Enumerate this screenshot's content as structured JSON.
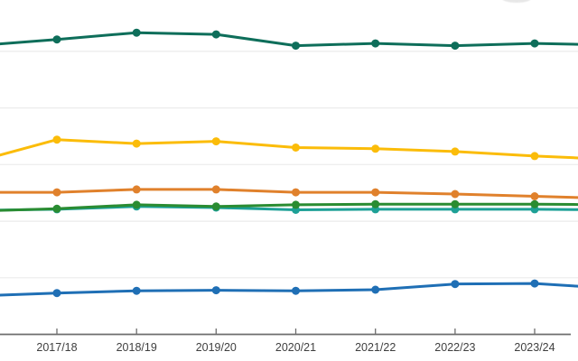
{
  "page": {
    "background_color": "#ffffff",
    "top_edge_remnant": "faint light-gray partial ellipse of a cropped element at top edge"
  },
  "chart_data": {
    "type": "line",
    "title": "",
    "legend": "none visible (cropped out)",
    "categories": [
      "2017/18",
      "2018/19",
      "2019/20",
      "2020/21",
      "2021/22",
      "2022/23",
      "2023/24"
    ],
    "x_axis": {
      "axis_color": "#6e6e6e",
      "label_color": "#3f3f3f",
      "tick_style": "short tick above axis line at each category"
    },
    "y_axis": {
      "labels_visible": false,
      "gridline_values": [
        10,
        20,
        30,
        40,
        50
      ],
      "ylim": [
        0,
        59
      ],
      "grid_color": "#ebebeb",
      "note": "No y-axis labels are visible in the crop; values estimated assuming one gridline interval = 10 units (axis baseline = 0)."
    },
    "values_note": "Each series has 9 values: first and last are off-canvas continuation points (chart cropped left/right); middle 7 align with categories and have visible round markers.",
    "series": [
      {
        "name": "dark-teal",
        "color": "#0e6e5a",
        "values": [
          51.0,
          52.1,
          53.3,
          53.0,
          51.0,
          51.4,
          51.0,
          51.4,
          51.1
        ]
      },
      {
        "name": "yellow",
        "color": "#fbbc09",
        "values": [
          30.6,
          34.4,
          33.7,
          34.1,
          33.0,
          32.8,
          32.3,
          31.5,
          30.9
        ]
      },
      {
        "name": "orange",
        "color": "#e0812c",
        "values": [
          25.1,
          25.1,
          25.6,
          25.6,
          25.1,
          25.1,
          24.8,
          24.4,
          24.0
        ]
      },
      {
        "name": "teal",
        "color": "#1da096",
        "values": [
          21.9,
          22.1,
          22.6,
          22.4,
          22.0,
          22.1,
          22.1,
          22.1,
          22.0
        ]
      },
      {
        "name": "green",
        "color": "#2a8c32",
        "values": [
          21.8,
          22.2,
          22.9,
          22.6,
          22.9,
          23.0,
          23.0,
          23.0,
          22.9
        ]
      },
      {
        "name": "blue",
        "color": "#1f6fb5",
        "values": [
          6.8,
          7.3,
          7.7,
          7.8,
          7.7,
          7.9,
          8.9,
          9.0,
          8.1
        ]
      }
    ]
  }
}
